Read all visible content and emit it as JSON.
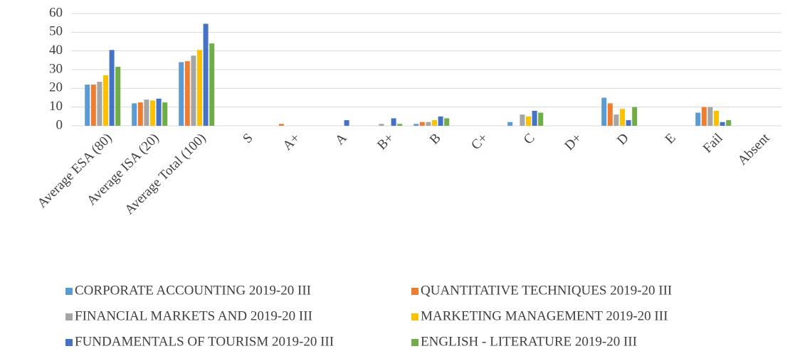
{
  "chart_data": {
    "type": "bar",
    "categories": [
      "Average ESA (80)",
      "Average ISA (20)",
      "Average Total (100)",
      "S",
      "A+",
      "A",
      "B+",
      "B",
      "C+",
      "C",
      "D+",
      "D",
      "E",
      "Fail",
      "Absent"
    ],
    "series": [
      {
        "name": "CORPORATE ACCOUNTING 2019-20 III",
        "color": "#5b9bd5",
        "values": [
          22,
          12,
          34,
          0,
          0,
          0,
          0,
          1,
          0,
          2,
          0,
          15,
          0,
          7,
          0
        ]
      },
      {
        "name": "QUANTITATIVE TECHNIQUES 2019-20 III",
        "color": "#ed7d31",
        "values": [
          22,
          12.5,
          34.5,
          0,
          1,
          0,
          0,
          2,
          0,
          0,
          0,
          12,
          0,
          10,
          0
        ]
      },
      {
        "name": "FINANCIAL MARKETS AND 2019-20 III",
        "color": "#a5a5a5",
        "values": [
          23.5,
          14,
          37.5,
          0,
          0,
          0,
          1,
          2,
          0,
          6,
          0,
          6,
          0,
          10,
          0
        ]
      },
      {
        "name": "MARKETING MANAGEMENT 2019-20 III",
        "color": "#ffc000",
        "values": [
          27,
          13.5,
          40.5,
          0,
          0,
          0,
          0,
          3,
          0,
          5,
          0,
          9,
          0,
          8,
          0
        ]
      },
      {
        "name": "FUNDAMENTALS OF TOURISM 2019-20 III",
        "color": "#4472c4",
        "values": [
          40.5,
          14.5,
          54.5,
          0,
          0,
          3,
          4,
          5,
          0,
          8,
          0,
          3,
          0,
          2,
          0
        ]
      },
      {
        "name": "ENGLISH - LITERATURE 2019-20 III",
        "color": "#70ad47",
        "values": [
          31.5,
          12.5,
          44,
          0,
          0,
          0,
          1,
          4,
          0,
          7,
          0,
          10,
          0,
          3,
          0
        ]
      }
    ],
    "ylim": [
      0,
      60
    ],
    "yticks": [
      0,
      10,
      20,
      30,
      40,
      50,
      60
    ],
    "grid": true,
    "legend": "bottom"
  }
}
